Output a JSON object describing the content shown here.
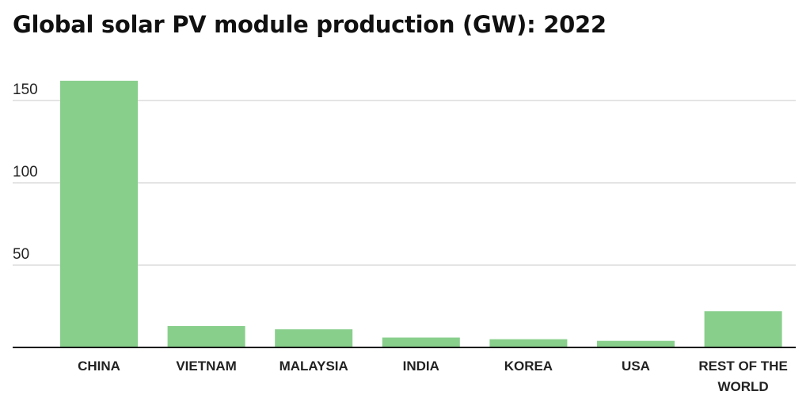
{
  "chart_data": {
    "type": "bar",
    "title": "Global solar PV module production (GW): 2022",
    "categories": [
      "CHINA",
      "VIETNAM",
      "MALAYSIA",
      "INDIA",
      "KOREA",
      "USA",
      "REST OF THE WORLD"
    ],
    "values": [
      162,
      13,
      11,
      6,
      5,
      4,
      22
    ],
    "ylim": [
      0,
      150
    ],
    "yticks": [
      50,
      100,
      150
    ],
    "grid": true,
    "xlabel": "",
    "ylabel": "",
    "colors": {
      "bar": "#88cf8c",
      "grid": "#c8c8c8",
      "baseline": "#111111"
    }
  }
}
